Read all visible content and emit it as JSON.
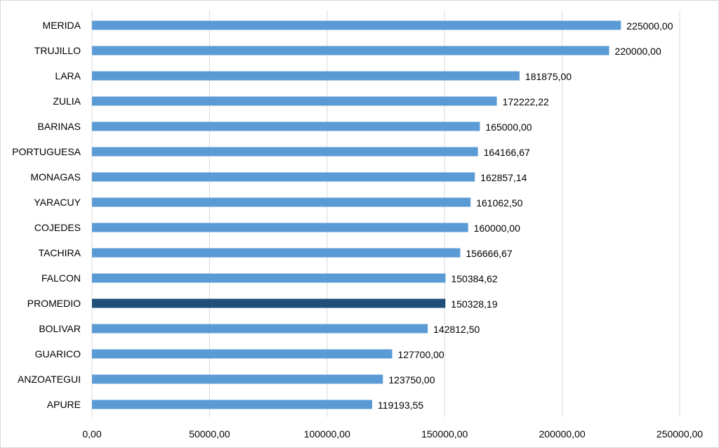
{
  "chart_data": {
    "type": "bar",
    "orientation": "horizontal",
    "title": "",
    "xlabel": "",
    "ylabel": "",
    "categories": [
      "MERIDA",
      "TRUJILLO",
      "LARA",
      "ZULIA",
      "BARINAS",
      "PORTUGUESA",
      "MONAGAS",
      "YARACUY",
      "COJEDES",
      "TACHIRA",
      "FALCON",
      "PROMEDIO",
      "BOLIVAR",
      "GUARICO",
      "ANZOATEGUI",
      "APURE"
    ],
    "values": [
      225000.0,
      220000.0,
      181875.0,
      172222.22,
      165000.0,
      164166.67,
      162857.14,
      161062.5,
      160000.0,
      156666.67,
      150384.62,
      150328.19,
      142812.5,
      127700.0,
      123750.0,
      119193.55
    ],
    "value_labels": [
      "225000,00",
      "220000,00",
      "181875,00",
      "172222,22",
      "165000,00",
      "164166,67",
      "162857,14",
      "161062,50",
      "160000,00",
      "156666,67",
      "150384,62",
      "150328,19",
      "142812,50",
      "127700,00",
      "123750,00",
      "119193,55"
    ],
    "xlim": [
      0,
      250000
    ],
    "xticks": [
      0,
      50000,
      100000,
      150000,
      200000,
      250000
    ],
    "xtick_labels": [
      "0,00",
      "50000,00",
      "100000,00",
      "150000,00",
      "200000,00",
      "250000,00"
    ],
    "grid": true,
    "legend": "none",
    "colors": {
      "bar": "#5b9bd5",
      "highlight": "#1f4e79",
      "grid": "#d9d9d9"
    },
    "highlight_category": "PROMEDIO"
  }
}
